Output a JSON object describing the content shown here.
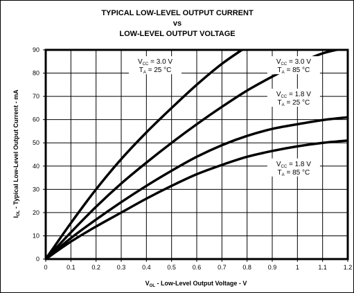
{
  "chart_data": {
    "type": "line",
    "title_lines": [
      "TYPICAL LOW-LEVEL OUTPUT CURRENT",
      "vs",
      "LOW-LEVEL OUTPUT VOLTAGE"
    ],
    "xlabel": {
      "main": "V",
      "sub": "OL",
      "rest": " - Low-Level Output Voltage - V"
    },
    "ylabel": {
      "main": "I",
      "sub": "OL",
      "rest": " - Typical Low-Level Output Current - mA"
    },
    "xlim": [
      0,
      1.2
    ],
    "ylim": [
      0,
      90
    ],
    "x_ticks": [
      "0",
      "0.1",
      "0.2",
      "0.3",
      "0.4",
      "0.5",
      "0.6",
      "0.7",
      "0.8",
      "0.9",
      "1",
      "1.1",
      "1.2"
    ],
    "y_ticks": [
      "0",
      "10",
      "20",
      "30",
      "40",
      "50",
      "60",
      "70",
      "80",
      "90"
    ],
    "grid": true,
    "series": [
      {
        "name": "VCC = 3.0 V, TA = 25 °C",
        "x": [
          0,
          0.1,
          0.2,
          0.3,
          0.4,
          0.5,
          0.6,
          0.7,
          0.8,
          0.845
        ],
        "y": [
          0,
          15.5,
          30,
          43,
          54.5,
          65,
          75,
          84,
          91.5,
          95
        ]
      },
      {
        "name": "VCC = 3.0 V, TA = 85 °C",
        "x": [
          0,
          0.1,
          0.2,
          0.3,
          0.4,
          0.5,
          0.6,
          0.7,
          0.8,
          0.9,
          1.0,
          1.1,
          1.2
        ],
        "y": [
          0,
          11.5,
          22.5,
          32.5,
          41.5,
          50,
          58,
          65.5,
          72.5,
          78.5,
          84,
          88.5,
          91
        ]
      },
      {
        "name": "VCC = 1.8 V, TA = 25 °C",
        "x": [
          0,
          0.1,
          0.2,
          0.3,
          0.4,
          0.5,
          0.6,
          0.7,
          0.8,
          0.9,
          1.0,
          1.1,
          1.2
        ],
        "y": [
          0,
          9,
          17,
          24.5,
          31.5,
          38,
          44,
          49,
          53,
          56,
          58,
          59.8,
          61
        ]
      },
      {
        "name": "VCC = 1.8 V, TA = 85 °C",
        "x": [
          0,
          0.1,
          0.2,
          0.3,
          0.4,
          0.5,
          0.6,
          0.7,
          0.8,
          0.9,
          1.0,
          1.1,
          1.2
        ],
        "y": [
          0,
          7.5,
          14,
          20,
          26,
          31.5,
          36.5,
          40.5,
          44,
          46.5,
          48.5,
          50,
          51
        ]
      }
    ],
    "annotations": [
      {
        "vcc_label": "V",
        "vcc_sub": "CC",
        "vcc_value": " = 3.0 V",
        "ta_label": "T",
        "ta_sub": "A",
        "ta_value": " = 25 °C",
        "anchor": [
          0.435,
          84
        ]
      },
      {
        "vcc_label": "V",
        "vcc_sub": "CC",
        "vcc_value": " = 3.0 V",
        "ta_label": "T",
        "ta_sub": "A",
        "ta_value": " = 85 °C",
        "anchor": [
          0.985,
          84
        ]
      },
      {
        "vcc_label": "V",
        "vcc_sub": "CC",
        "vcc_value": " = 1.8 V",
        "ta_label": "T",
        "ta_sub": "A",
        "ta_value": " = 25 °C",
        "anchor": [
          0.985,
          70
        ]
      },
      {
        "vcc_label": "V",
        "vcc_sub": "CC",
        "vcc_value": " = 1.8 V",
        "ta_label": "T",
        "ta_sub": "A",
        "ta_value": " = 85 °C",
        "anchor": [
          0.985,
          40
        ]
      }
    ],
    "colors": {
      "line": "#000000",
      "grid": "#000000",
      "background": "#ffffff"
    }
  }
}
